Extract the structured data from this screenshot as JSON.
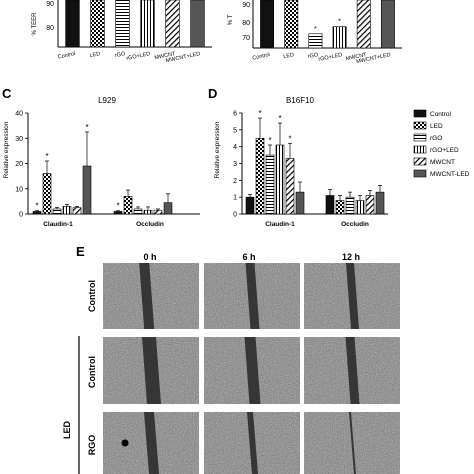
{
  "panels": {
    "top_left": {
      "ylabel": "% TEER",
      "ticks": [
        "80",
        "90"
      ],
      "cats": [
        "Control",
        "LED",
        "rGO",
        "rGO+LED",
        "MWCNT",
        "MWCNT+LED"
      ]
    },
    "top_right": {
      "ylabel": "% T",
      "ticks": [
        "70",
        "80",
        "90"
      ],
      "cats": [
        "Control",
        "LED",
        "rGO",
        "rGO+LED",
        "MWCNT",
        "MWCNT+LED"
      ]
    },
    "C": {
      "letter": "C",
      "title": "L929",
      "ylabel": "Relative expression",
      "ticks": [
        "0",
        "10",
        "20",
        "30",
        "40"
      ],
      "groups": [
        "Claudin-1",
        "Occludin"
      ]
    },
    "D": {
      "letter": "D",
      "title": "B16F10",
      "ylabel": "Relative expression",
      "ticks": [
        "0",
        "1",
        "2",
        "3",
        "4",
        "5",
        "6"
      ],
      "groups": [
        "Claudin-1",
        "Occludin"
      ]
    },
    "legend": [
      "Control",
      "LED",
      "rGO",
      "rGO+LED",
      "MWCNT",
      "MWCNT-LED"
    ],
    "E": {
      "letter": "E",
      "times": [
        "0 h",
        "6 h",
        "12 h"
      ],
      "rows": [
        "Control",
        "Control",
        "RGO"
      ],
      "group_label": "LED"
    }
  },
  "chart_data": [
    {
      "type": "bar",
      "id": "top_left",
      "categories": [
        "Control",
        "LED",
        "rGO",
        "rGO+LED",
        "MWCNT",
        "MWCNT+LED"
      ],
      "values": [
        100,
        100,
        95,
        95,
        96,
        100
      ],
      "ylabel": "% TEER",
      "ylim": [
        70,
        100
      ]
    },
    {
      "type": "bar",
      "id": "top_right",
      "categories": [
        "Control",
        "LED",
        "rGO",
        "rGO+LED",
        "MWCNT",
        "MWCNT+LED"
      ],
      "values": [
        100,
        100,
        73,
        77,
        98,
        100
      ],
      "ylabel": "% T",
      "ylim": [
        65,
        100
      ]
    },
    {
      "type": "bar",
      "id": "C",
      "title": "L929",
      "ylabel": "Relative expression",
      "ylim": [
        0,
        40
      ],
      "categories": [
        "Claudin-1",
        "Occludin"
      ],
      "series": [
        {
          "name": "Control",
          "values": [
            1,
            1
          ],
          "err": [
            0.3,
            0.3
          ]
        },
        {
          "name": "LED",
          "values": [
            16,
            7
          ],
          "err": [
            5,
            2.5
          ]
        },
        {
          "name": "rGO",
          "values": [
            2,
            2
          ],
          "err": [
            0.6,
            0.8
          ]
        },
        {
          "name": "rGO+LED",
          "values": [
            3,
            1.5
          ],
          "err": [
            0.8,
            1.3
          ]
        },
        {
          "name": "MWCNT",
          "values": [
            2.5,
            1.5
          ],
          "err": [
            0.5,
            0.5
          ]
        },
        {
          "name": "MWCNT-LED",
          "values": [
            19,
            4.5
          ],
          "err": [
            13.5,
            3.5
          ]
        }
      ],
      "significance": [
        "*",
        "*",
        "",
        "",
        "",
        "*",
        "*",
        "",
        "",
        "",
        "",
        ""
      ]
    },
    {
      "type": "bar",
      "id": "D",
      "title": "B16F10",
      "ylabel": "Relative expression",
      "ylim": [
        0,
        6
      ],
      "categories": [
        "Claudin-1",
        "Occludin"
      ],
      "series": [
        {
          "name": "Control",
          "values": [
            1,
            1.1
          ],
          "err": [
            0.15,
            0.35
          ]
        },
        {
          "name": "LED",
          "values": [
            4.5,
            0.8
          ],
          "err": [
            1.2,
            0.3
          ]
        },
        {
          "name": "rGO",
          "values": [
            3.5,
            1
          ],
          "err": [
            0.6,
            0.3
          ]
        },
        {
          "name": "rGO+LED",
          "values": [
            4.1,
            0.8
          ],
          "err": [
            1.3,
            0.3
          ]
        },
        {
          "name": "MWCNT",
          "values": [
            3.3,
            1.1
          ],
          "err": [
            0.9,
            0.3
          ]
        },
        {
          "name": "MWCNT-LED",
          "values": [
            1.3,
            1.3
          ],
          "err": [
            0.6,
            0.4
          ]
        }
      ],
      "significance": [
        "",
        "*",
        "*",
        "*",
        "*",
        "",
        "",
        "",
        "",
        "",
        "",
        ""
      ]
    }
  ],
  "colors": {
    "bar_dark": "#111111",
    "bar_gray": "#555555",
    "micro_bg": "#6f6f6f"
  }
}
